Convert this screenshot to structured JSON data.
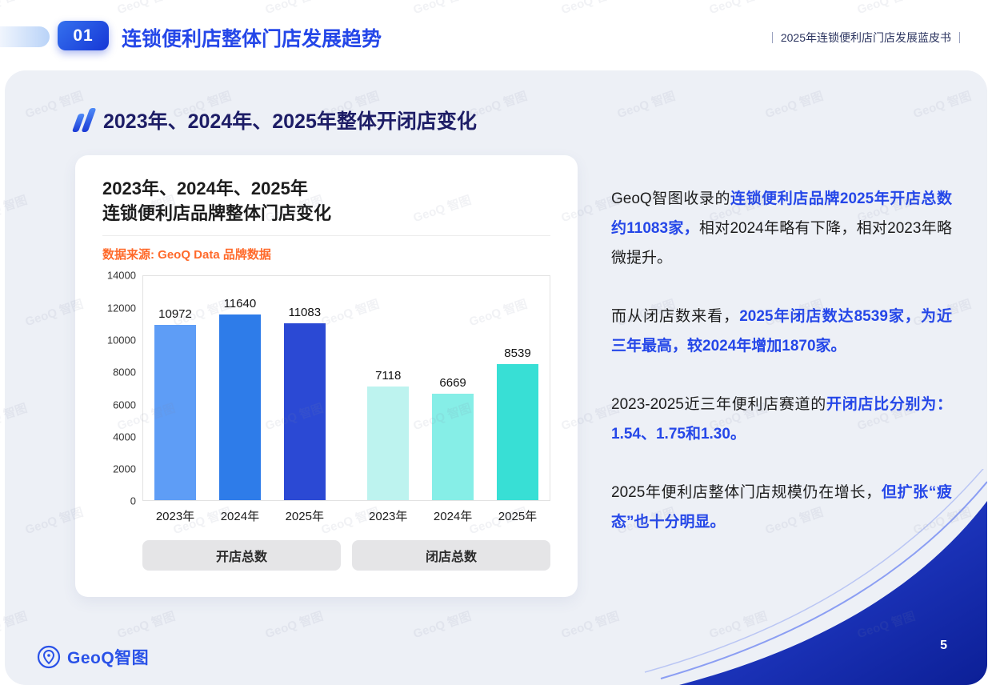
{
  "colors": {
    "accent_blue": "#2547e8",
    "heading_navy": "#1d1d66",
    "orange": "#ff6a2b",
    "panel_gray": "#edf0f6",
    "wave_navy": "#12289f"
  },
  "header": {
    "badge": "01",
    "title": "连锁便利店整体门店发展趋势",
    "report_name": "2025年连锁便利店门店发展蓝皮书"
  },
  "section": {
    "title": "2023年、2024年、2025年整体开闭店变化"
  },
  "chart_card": {
    "title_line1": "2023年、2024年、2025年",
    "title_line2": "连锁便利店品牌整体门店变化",
    "source": "数据来源: GeoQ Data 品牌数据"
  },
  "chart_data": {
    "type": "bar",
    "title": "2023年、2024年、2025年连锁便利店品牌整体门店变化",
    "xlabel": "",
    "ylabel": "",
    "ylim": [
      0,
      14000
    ],
    "yticks": [
      0,
      2000,
      4000,
      6000,
      8000,
      10000,
      12000,
      14000
    ],
    "grid": false,
    "legend_position": "none",
    "groups": [
      {
        "id": "open",
        "label": "开店总数",
        "categories": [
          "2023年",
          "2024年",
          "2025年"
        ],
        "values": [
          10972,
          11640,
          11083
        ],
        "colors": [
          "#5e9df6",
          "#2e7ce9",
          "#2b49d4"
        ]
      },
      {
        "id": "close",
        "label": "闭店总数",
        "categories": [
          "2023年",
          "2024年",
          "2025年"
        ],
        "values": [
          7118,
          6669,
          8539
        ],
        "colors": [
          "#bdf3ef",
          "#86eee7",
          "#38dfd5"
        ]
      }
    ]
  },
  "analysis": {
    "paragraphs": [
      {
        "segments": [
          {
            "text": "GeoQ智图收录的",
            "em": false
          },
          {
            "text": "连锁便利店品牌2025年开店总数约11083家，",
            "em": true
          },
          {
            "text": "相对2024年略有下降，相对2023年略微提升。",
            "em": false
          }
        ]
      },
      {
        "segments": [
          {
            "text": "而从闭店数来看，",
            "em": false
          },
          {
            "text": "2025年闭店数达8539家，为近三年最高，较2024年增加1870家。",
            "em": true
          }
        ]
      },
      {
        "segments": [
          {
            "text": "2023-2025近三年便利店赛道的",
            "em": false
          },
          {
            "text": "开闭店比分别为：1.54、1.75和1.30。",
            "em": true
          }
        ]
      },
      {
        "segments": [
          {
            "text": "2025年便利店整体门店规模仍在增长，",
            "em": false
          },
          {
            "text": "但扩张“疲态”也十分明显。",
            "em": true
          }
        ]
      }
    ]
  },
  "footer": {
    "logo_geoq": "GeoQ",
    "logo_suffix": "智图",
    "page_number": "5"
  },
  "watermark": "GeoQ 智图"
}
